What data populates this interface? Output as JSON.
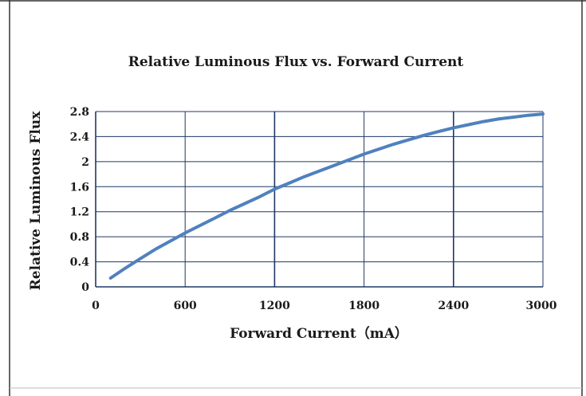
{
  "chart_data": {
    "type": "line",
    "title": "Relative Luminous Flux vs. Forward Current",
    "xlabel": "Forward Current（mA）",
    "ylabel": "Relative Luminous Flux",
    "xlim": [
      0,
      3000
    ],
    "ylim": [
      0,
      2.8
    ],
    "x_ticks": [
      "0",
      "600",
      "1200",
      "1800",
      "2400",
      "3000"
    ],
    "y_ticks": [
      "0",
      "0.4",
      "0.8",
      "1.2",
      "1.6",
      "2",
      "2.4",
      "2.8"
    ],
    "grid": true,
    "legend": "none",
    "series": [
      {
        "color": "#4f81bd",
        "x": [
          100,
          200,
          300,
          400,
          500,
          600,
          700,
          800,
          900,
          1000,
          1100,
          1200,
          1300,
          1400,
          1500,
          1600,
          1700,
          1800,
          1900,
          2000,
          2100,
          2200,
          2300,
          2400,
          2500,
          2600,
          2700,
          2800,
          2900,
          3000
        ],
        "y": [
          0.14,
          0.3,
          0.45,
          0.6,
          0.73,
          0.86,
          0.98,
          1.1,
          1.22,
          1.33,
          1.44,
          1.56,
          1.66,
          1.76,
          1.85,
          1.94,
          2.03,
          2.12,
          2.2,
          2.28,
          2.35,
          2.42,
          2.48,
          2.54,
          2.59,
          2.64,
          2.68,
          2.71,
          2.74,
          2.76
        ]
      }
    ]
  },
  "colors": {
    "line": "#4f81bd",
    "grid": "#1f3864",
    "border": "#333333"
  }
}
